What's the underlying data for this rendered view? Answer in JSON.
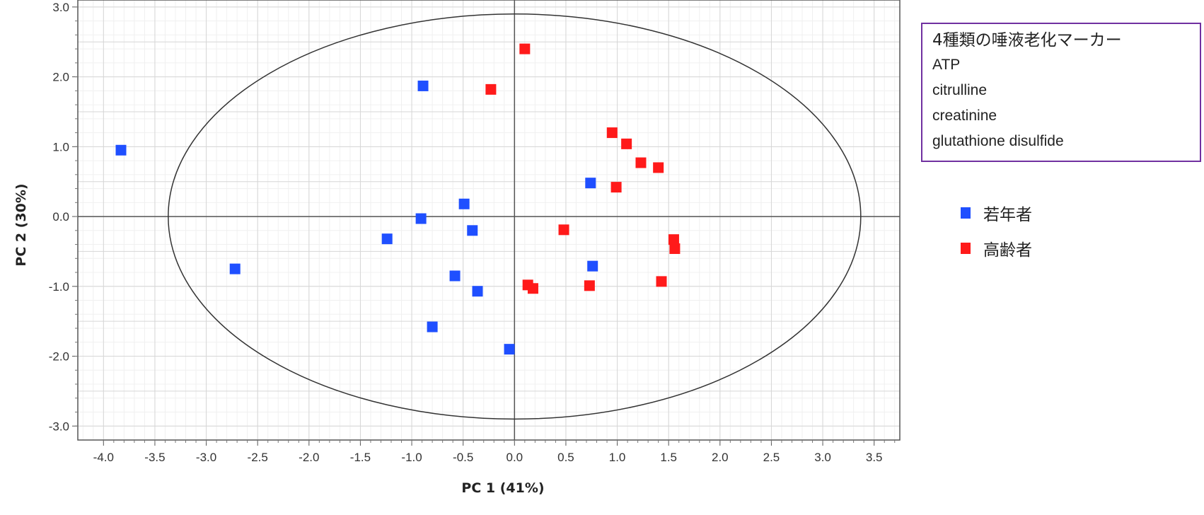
{
  "chart_data": {
    "type": "scatter",
    "xlabel": "PC 1 (41%)",
    "ylabel": "PC 2 (30%)",
    "xlim": [
      -4.25,
      3.75
    ],
    "ylim": [
      -3.2,
      3.1
    ],
    "xticks": [
      "-4.0",
      "-3.5",
      "-3.0",
      "-2.5",
      "-2.0",
      "-1.5",
      "-1.0",
      "-0.5",
      "0.0",
      "0.5",
      "1.0",
      "1.5",
      "2.0",
      "2.5",
      "3.0",
      "3.5"
    ],
    "xtick_values": [
      -4.0,
      -3.5,
      -3.0,
      -2.5,
      -2.0,
      -1.5,
      -1.0,
      -0.5,
      0.0,
      0.5,
      1.0,
      1.5,
      2.0,
      2.5,
      3.0,
      3.5
    ],
    "yticks": [
      "3.0",
      "2.0",
      "1.0",
      "0.0",
      "-1.0",
      "-2.0",
      "-3.0"
    ],
    "ytick_values": [
      3.0,
      2.0,
      1.0,
      0.0,
      -1.0,
      -2.0,
      -3.0
    ],
    "grid": true,
    "ellipse": {
      "cx": 0.0,
      "cy": 0.0,
      "rx": 3.37,
      "ry": 2.9
    },
    "series": [
      {
        "name": "若年者",
        "color": "#1f4fff",
        "points": [
          [
            -3.83,
            0.95
          ],
          [
            -0.89,
            1.87
          ],
          [
            -2.72,
            -0.75
          ],
          [
            -0.49,
            0.18
          ],
          [
            -0.91,
            -0.03
          ],
          [
            -0.41,
            -0.2
          ],
          [
            -1.24,
            -0.32
          ],
          [
            -0.58,
            -0.85
          ],
          [
            -0.36,
            -1.07
          ],
          [
            -0.8,
            -1.58
          ],
          [
            -0.05,
            -1.9
          ],
          [
            0.74,
            0.48
          ],
          [
            0.76,
            -0.71
          ]
        ]
      },
      {
        "name": "高齢者",
        "color": "#ff1a1a",
        "points": [
          [
            0.1,
            2.4
          ],
          [
            -0.23,
            1.82
          ],
          [
            0.95,
            1.2
          ],
          [
            1.09,
            1.04
          ],
          [
            1.23,
            0.77
          ],
          [
            1.4,
            0.7
          ],
          [
            0.99,
            0.42
          ],
          [
            0.48,
            -0.19
          ],
          [
            1.55,
            -0.33
          ],
          [
            1.56,
            -0.46
          ],
          [
            0.13,
            -0.98
          ],
          [
            0.18,
            -1.03
          ],
          [
            0.73,
            -0.99
          ],
          [
            1.43,
            -0.93
          ]
        ]
      }
    ]
  },
  "info_box": {
    "title": "4種類の唾液老化マーカー",
    "markers": [
      "ATP",
      "citrulline",
      "creatinine",
      "glutathione disulfide"
    ]
  },
  "legend": {
    "items": [
      {
        "label": "若年者",
        "color": "#1f4fff"
      },
      {
        "label": "高齢者",
        "color": "#ff1a1a"
      }
    ]
  }
}
